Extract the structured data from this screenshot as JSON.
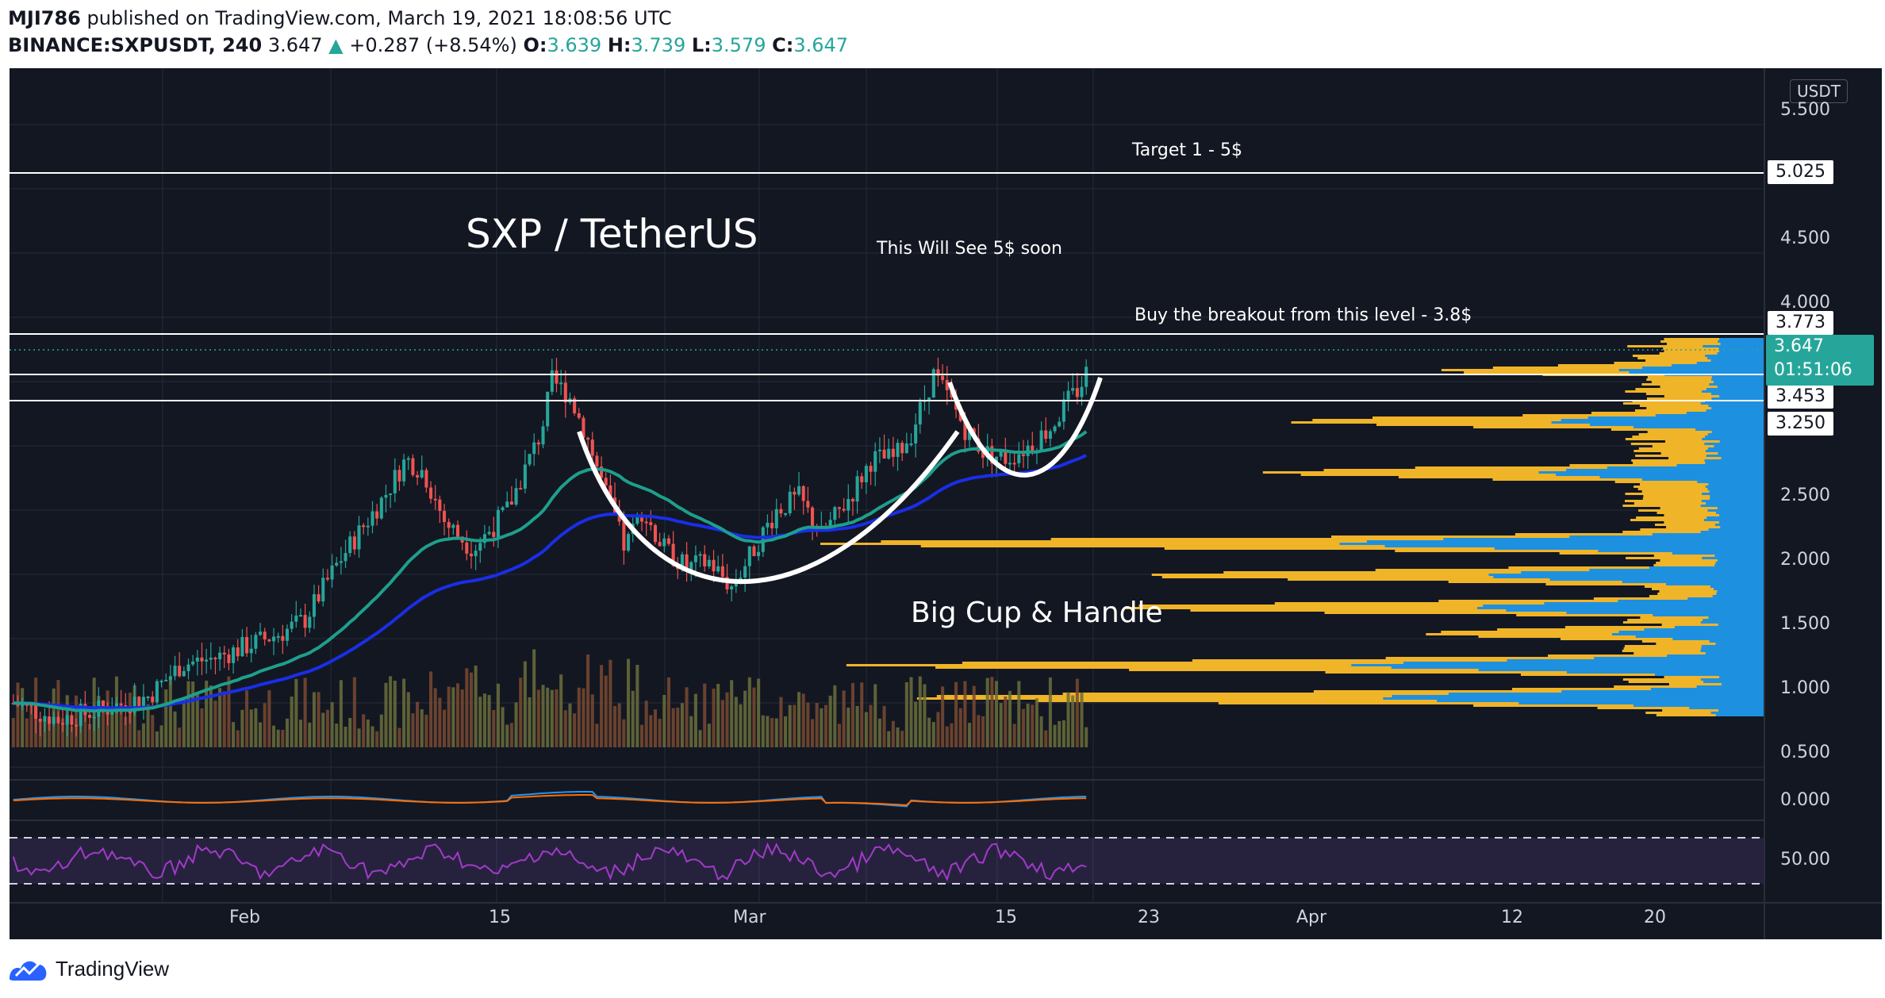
{
  "header": {
    "author": "MJI786",
    "published": "published on TradingView.com, March 19, 2021 18:08:56 UTC",
    "symbol": "BINANCE:SXPUSDT, 240",
    "last": "3.647",
    "change": "+0.287 (+8.54%)",
    "o_label": "O:",
    "o": "3.639",
    "h_label": "H:",
    "h": "3.739",
    "l_label": "L:",
    "l": "3.579",
    "c_label": "C:",
    "c": "3.647"
  },
  "currency": "USDT",
  "price_ticks": [
    "5.500",
    "4.500",
    "4.000",
    "2.500",
    "2.000",
    "1.500",
    "1.000",
    "0.500"
  ],
  "macd_tick": "0.000",
  "rsi_tick": "50.00",
  "date_ticks": [
    "Feb",
    "15",
    "Mar",
    "15",
    "23",
    "Apr",
    "12",
    "20"
  ],
  "level_labels": [
    "5.025",
    "3.773",
    "3.453",
    "3.250"
  ],
  "current_price": "3.647",
  "countdown": "01:51:06",
  "annotations": {
    "title": "SXP / TetherUS",
    "target": "Target 1 - 5$",
    "soon": "This Will See 5$ soon",
    "breakout": "Buy the breakout from this level - 3.8$",
    "pattern": "Big Cup & Handle"
  },
  "footer": {
    "brand": "TradingView"
  },
  "colors": {
    "bg": "#131722",
    "up": "#26a69a",
    "down": "#ef5350",
    "ema_teal": "#1e9f8c",
    "ema_blue": "#1a2ee8",
    "vp_yellow": "#f0b428",
    "vp_blue": "#1e90e0",
    "rsi": "#a23ac9",
    "macd": "#2196f3",
    "signal": "#ff6d00"
  }
}
